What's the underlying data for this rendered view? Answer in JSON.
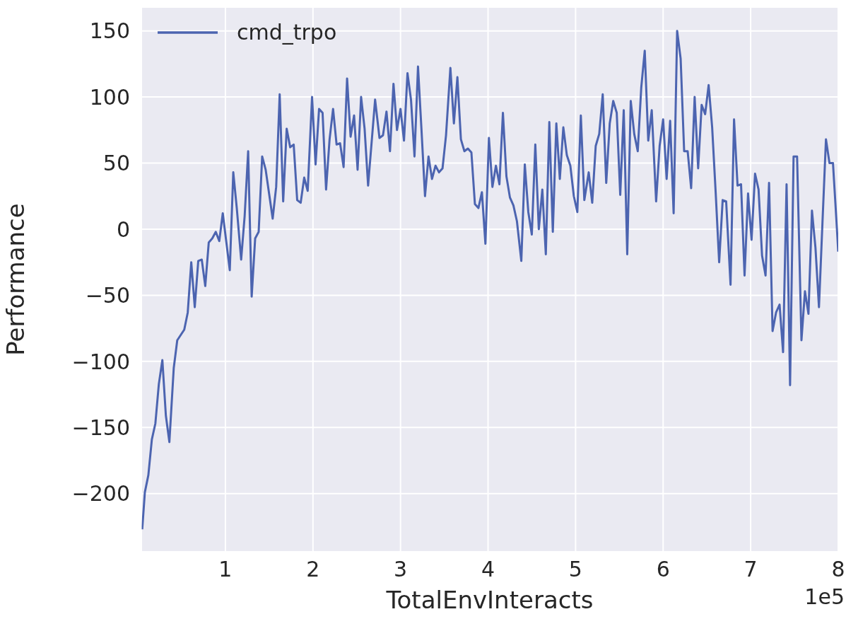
{
  "chart_data": {
    "type": "line",
    "xlabel": "TotalEnvInteracts",
    "ylabel": "Performance",
    "annotations": [
      "1e5"
    ],
    "x": [
      0.05,
      0.08,
      0.12,
      0.16,
      0.2,
      0.24,
      0.28,
      0.32,
      0.36,
      0.41,
      0.45,
      0.53,
      0.57,
      0.61,
      0.65,
      0.69,
      0.73,
      0.77,
      0.81,
      0.85,
      0.89,
      0.93,
      0.97,
      1.05,
      1.09,
      1.13,
      1.18,
      1.22,
      1.26,
      1.3,
      1.34,
      1.38,
      1.42,
      1.46,
      1.54,
      1.58,
      1.62,
      1.66,
      1.7,
      1.74,
      1.78,
      1.82,
      1.86,
      1.9,
      1.94,
      1.99,
      2.03,
      2.07,
      2.11,
      2.15,
      2.19,
      2.23,
      2.27,
      2.31,
      2.35,
      2.39,
      2.43,
      2.47,
      2.51,
      2.55,
      2.59,
      2.63,
      2.71,
      2.76,
      2.8,
      2.84,
      2.88,
      2.92,
      2.96,
      3.0,
      3.04,
      3.08,
      3.12,
      3.16,
      3.2,
      3.24,
      3.28,
      3.32,
      3.36,
      3.4,
      3.44,
      3.48,
      3.52,
      3.57,
      3.61,
      3.65,
      3.69,
      3.73,
      3.77,
      3.81,
      3.85,
      3.89,
      3.93,
      3.97,
      4.01,
      4.05,
      4.09,
      4.13,
      4.17,
      4.21,
      4.25,
      4.29,
      4.33,
      4.38,
      4.42,
      4.46,
      4.5,
      4.54,
      4.58,
      4.62,
      4.66,
      4.7,
      4.74,
      4.78,
      4.82,
      4.86,
      4.9,
      4.94,
      4.98,
      5.02,
      5.06,
      5.1,
      5.15,
      5.19,
      5.23,
      5.27,
      5.31,
      5.35,
      5.39,
      5.43,
      5.47,
      5.51,
      5.55,
      5.59,
      5.63,
      5.67,
      5.71,
      5.75,
      5.79,
      5.83,
      5.87,
      5.92,
      5.96,
      6.0,
      6.04,
      6.08,
      6.12,
      6.16,
      6.2,
      6.24,
      6.28,
      6.32,
      6.36,
      6.4,
      6.44,
      6.48,
      6.52,
      6.56,
      6.6,
      6.64,
      6.68,
      6.72,
      6.77,
      6.81,
      6.85,
      6.89,
      6.93,
      6.97,
      7.01,
      7.05,
      7.09,
      7.13,
      7.17,
      7.21,
      7.25,
      7.29,
      7.33,
      7.37,
      7.41,
      7.45,
      7.49,
      7.53,
      7.58,
      7.62,
      7.66,
      7.7,
      7.74,
      7.78,
      7.82,
      7.86,
      7.9,
      7.94,
      7.98,
      8.0
    ],
    "series": [
      {
        "name": "cmd_trpo",
        "color": "#4c64b0",
        "values": [
          -227,
          -199,
          -186,
          -159,
          -147,
          -117,
          -99,
          -141,
          -161,
          -105,
          -84,
          -76,
          -63,
          -25,
          -59,
          -24,
          -23,
          -43,
          -10,
          -7,
          -2,
          -9,
          12,
          -31,
          43,
          16,
          -23,
          10,
          59,
          -51,
          -7,
          -2,
          55,
          45,
          8,
          32,
          102,
          21,
          76,
          62,
          64,
          22,
          20,
          39,
          29,
          100,
          49,
          91,
          88,
          30,
          68,
          91,
          64,
          65,
          47,
          114,
          70,
          86,
          45,
          100,
          76,
          33,
          98,
          69,
          71,
          89,
          59,
          110,
          75,
          91,
          67,
          118,
          98,
          55,
          123,
          75,
          25,
          55,
          38,
          48,
          43,
          46,
          71,
          122,
          80,
          115,
          68,
          59,
          61,
          58,
          19,
          16,
          28,
          -11,
          69,
          32,
          48,
          34,
          88,
          40,
          24,
          18,
          6,
          -24,
          49,
          13,
          -4,
          64,
          0,
          30,
          -19,
          81,
          -2,
          80,
          38,
          77,
          56,
          48,
          25,
          13,
          86,
          22,
          43,
          20,
          63,
          72,
          102,
          35,
          80,
          97,
          88,
          26,
          90,
          -19,
          97,
          72,
          59,
          107,
          135,
          67,
          90,
          21,
          63,
          83,
          38,
          82,
          12,
          150,
          129,
          59,
          59,
          31,
          100,
          46,
          94,
          87,
          109,
          77,
          28,
          -25,
          22,
          21,
          -42,
          83,
          33,
          34,
          -35,
          27,
          -8,
          42,
          30,
          -20,
          -35,
          35,
          -77,
          -63,
          -57,
          -93,
          34,
          -118,
          55,
          55,
          -84,
          -47,
          -64,
          14,
          -14,
          -59,
          5,
          68,
          50,
          50,
          6,
          -17
        ]
      }
    ],
    "xlim": [
      0.04,
      8
    ],
    "xticks": [
      1,
      2,
      3,
      4,
      5,
      6,
      7,
      8
    ],
    "ylim": [
      -244,
      168
    ],
    "yticks": [
      -200,
      -150,
      -100,
      -50,
      0,
      50,
      100,
      150
    ],
    "grid": true,
    "legend": "top left",
    "marker": "none"
  }
}
